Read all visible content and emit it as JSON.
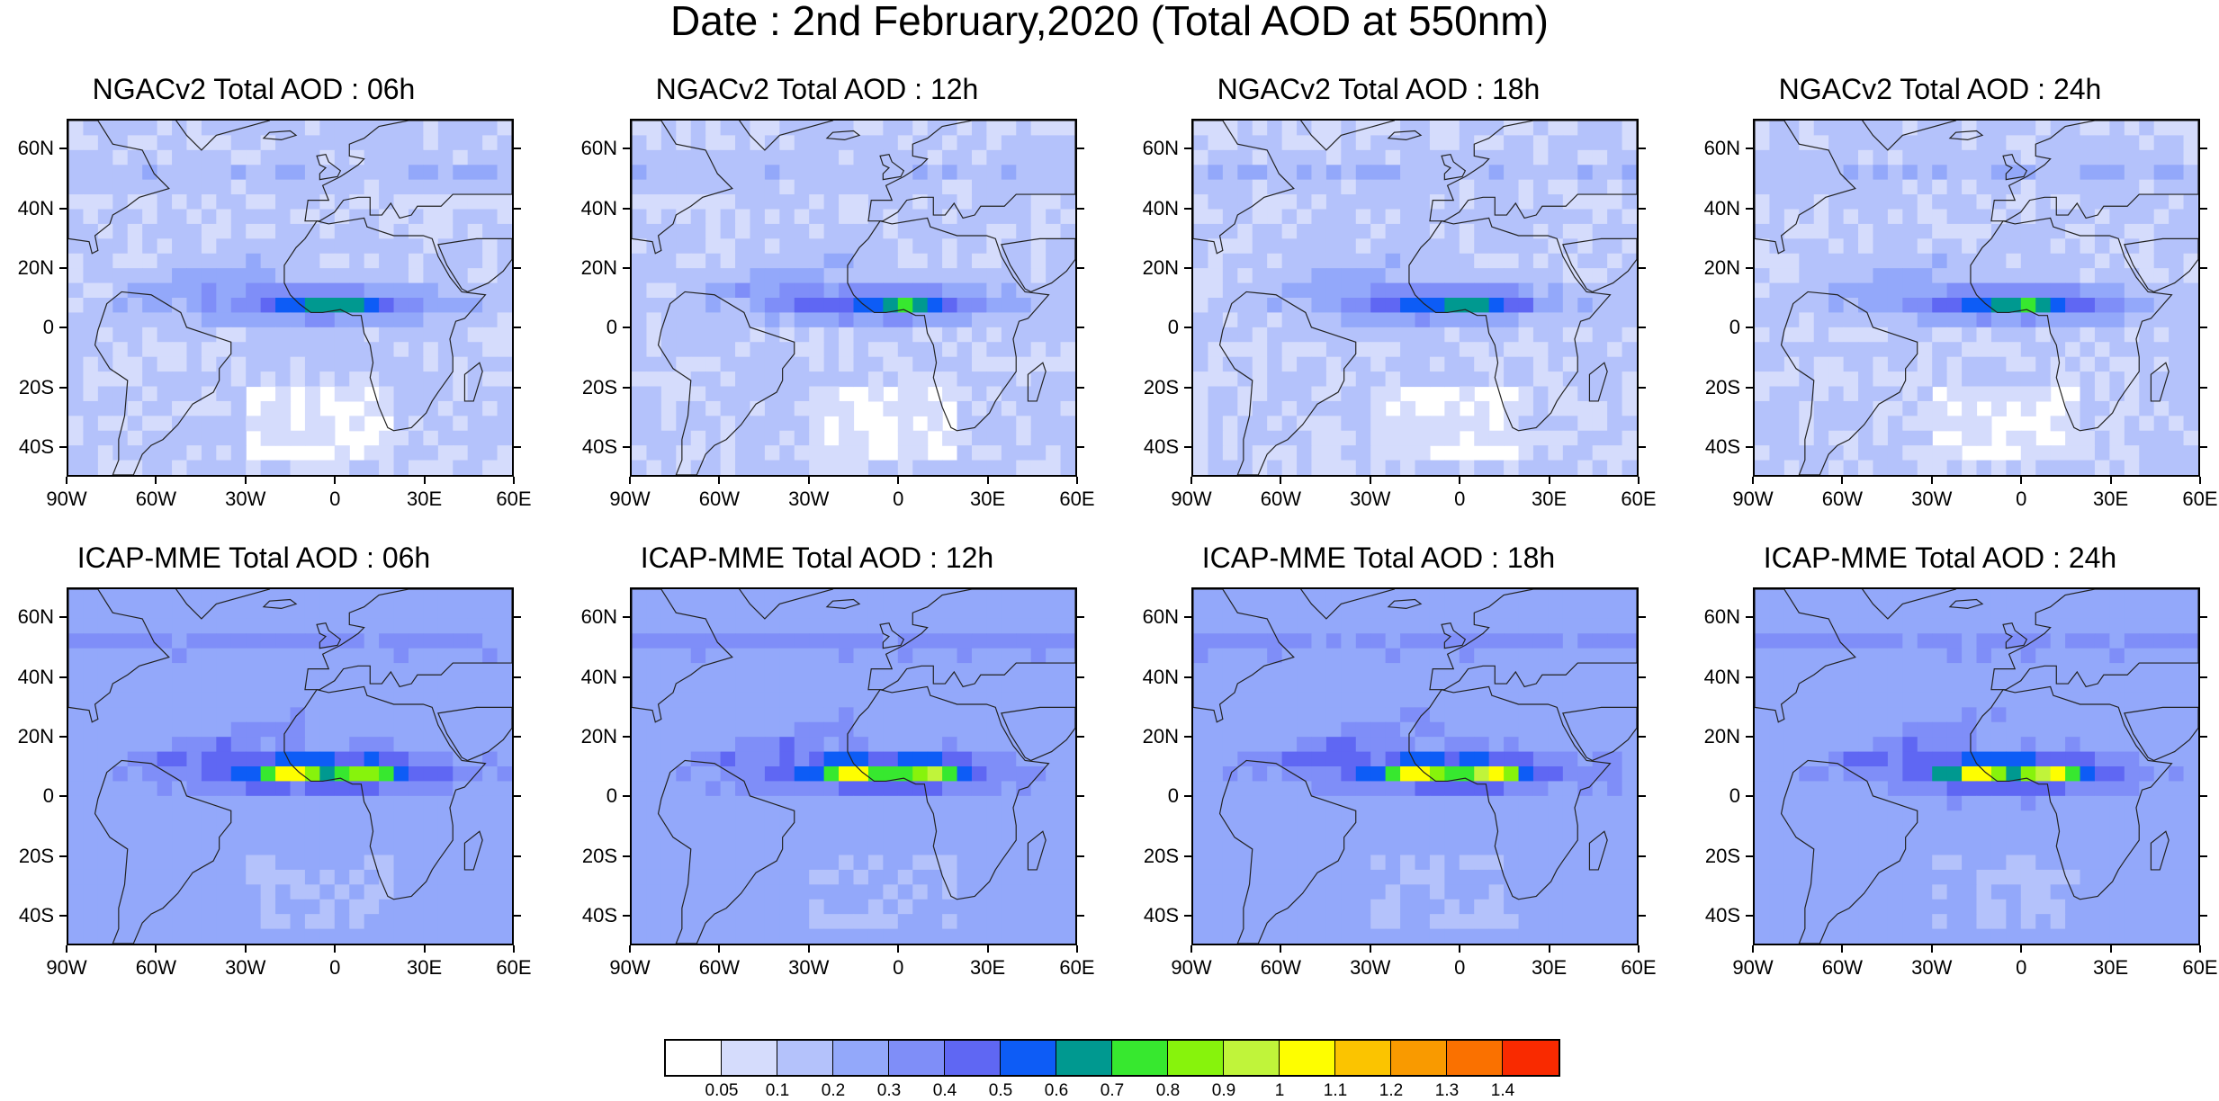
{
  "title": "Date : 2nd February,2020 (Total AOD at 550nm)",
  "panels": [
    {
      "title": "NGACv2 Total AOD : 06h",
      "model": "NGACv2",
      "hour": "06h"
    },
    {
      "title": "NGACv2 Total AOD : 12h",
      "model": "NGACv2",
      "hour": "12h"
    },
    {
      "title": "NGACv2 Total AOD : 18h",
      "model": "NGACv2",
      "hour": "18h"
    },
    {
      "title": "NGACv2 Total AOD : 24h",
      "model": "NGACv2",
      "hour": "24h"
    },
    {
      "title": "ICAP-MME Total AOD : 06h",
      "model": "ICAP-MME",
      "hour": "06h"
    },
    {
      "title": "ICAP-MME Total AOD : 12h",
      "model": "ICAP-MME",
      "hour": "12h"
    },
    {
      "title": "ICAP-MME Total AOD : 18h",
      "model": "ICAP-MME",
      "hour": "18h"
    },
    {
      "title": "ICAP-MME Total AOD : 24h",
      "model": "ICAP-MME",
      "hour": "24h"
    }
  ],
  "lat_labels": [
    "60N",
    "40N",
    "20N",
    "0",
    "20S",
    "40S"
  ],
  "lat_values": [
    60,
    40,
    20,
    0,
    -20,
    -40
  ],
  "lon_labels": [
    "90W",
    "60W",
    "30W",
    "0",
    "30E",
    "60E"
  ],
  "lon_values": [
    -90,
    -60,
    -30,
    0,
    30,
    60
  ],
  "lat_range": [
    -50,
    70
  ],
  "lon_range": [
    -90,
    60
  ],
  "colorbar": {
    "labels": [
      "0.05",
      "0.1",
      "0.2",
      "0.3",
      "0.4",
      "0.5",
      "0.6",
      "0.7",
      "0.8",
      "0.9",
      "1",
      "1.1",
      "1.2",
      "1.3",
      "1.4"
    ],
    "colors": [
      "#ffffff",
      "#d5dcfc",
      "#b4c2fb",
      "#93a8fa",
      "#7f8ef8",
      "#5f67f3",
      "#0d5cf6",
      "#009990",
      "#37e82f",
      "#87f30c",
      "#c0f43a",
      "#fefe00",
      "#fbc400",
      "#f99a00",
      "#fa7100",
      "#f92a00"
    ]
  }
}
